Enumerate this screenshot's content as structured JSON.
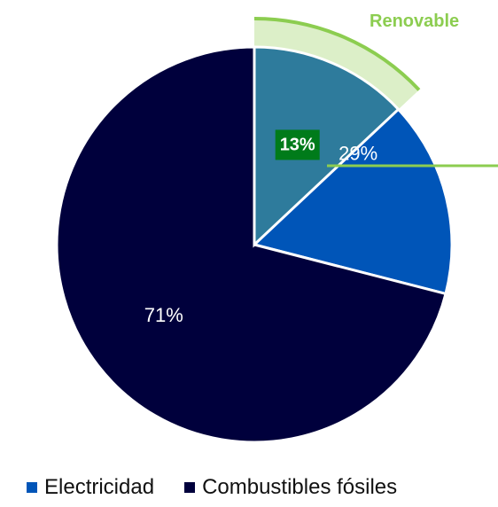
{
  "chart_data": {
    "type": "pie",
    "slices": [
      {
        "name": "Electricidad",
        "value": 29,
        "label": "29%",
        "color": "#0055b8"
      },
      {
        "name": "Combustibles fósiles",
        "value": 71,
        "label": "71%",
        "color": "#00003c"
      }
    ],
    "highlight": {
      "label": "Renovable",
      "value": 13,
      "value_label": "13%",
      "slice_color": "#2e7b9c",
      "band_color": "#dcefc8",
      "callout_color": "#8ccd50",
      "badge_color": "#007b1a"
    },
    "legend_position": "bottom"
  }
}
